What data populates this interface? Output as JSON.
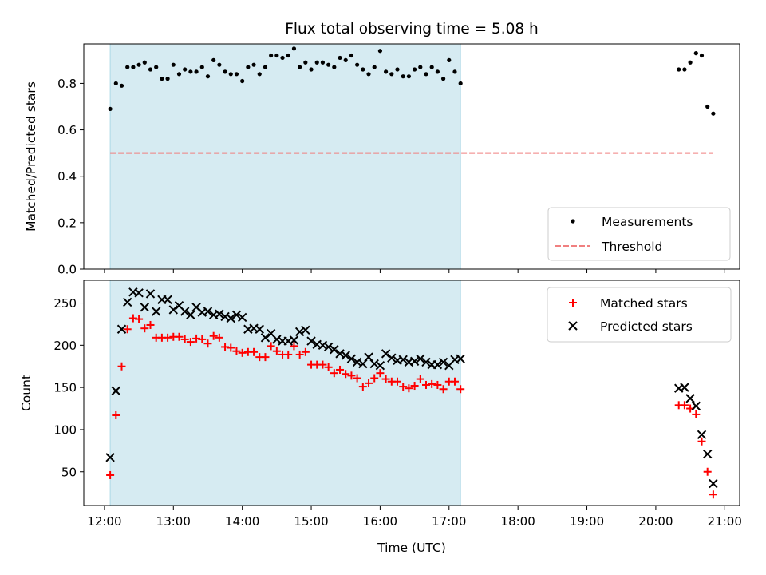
{
  "chart_data": [
    {
      "type": "scatter",
      "title": "Flux total observing time = 5.08 h",
      "xlabel": "",
      "ylabel": "Matched/Predicted stars",
      "ylim": [
        0,
        0.97
      ],
      "yticks": [
        "0.0",
        "0.2",
        "0.4",
        "0.6",
        "0.8"
      ],
      "ytick_values": [
        0,
        0.2,
        0.4,
        0.6,
        0.8
      ],
      "shaded_span": [
        "12:05",
        "17:10"
      ],
      "threshold": 0.5,
      "threshold_x": [
        "12:05",
        "20:50"
      ],
      "legend_position": "lower right",
      "series": [
        {
          "name": "Measurements",
          "marker": "dot",
          "color": "#000000",
          "points": [
            [
              "12:05",
              0.69
            ],
            [
              "12:10",
              0.8
            ],
            [
              "12:15",
              0.79
            ],
            [
              "12:20",
              0.87
            ],
            [
              "12:25",
              0.87
            ],
            [
              "12:30",
              0.88
            ],
            [
              "12:35",
              0.89
            ],
            [
              "12:40",
              0.86
            ],
            [
              "12:45",
              0.87
            ],
            [
              "12:50",
              0.82
            ],
            [
              "12:55",
              0.82
            ],
            [
              "13:00",
              0.88
            ],
            [
              "13:05",
              0.84
            ],
            [
              "13:10",
              0.86
            ],
            [
              "13:15",
              0.85
            ],
            [
              "13:20",
              0.85
            ],
            [
              "13:25",
              0.87
            ],
            [
              "13:30",
              0.83
            ],
            [
              "13:35",
              0.9
            ],
            [
              "13:40",
              0.88
            ],
            [
              "13:45",
              0.85
            ],
            [
              "13:50",
              0.84
            ],
            [
              "13:55",
              0.84
            ],
            [
              "14:00",
              0.81
            ],
            [
              "14:05",
              0.87
            ],
            [
              "14:10",
              0.88
            ],
            [
              "14:15",
              0.84
            ],
            [
              "14:20",
              0.87
            ],
            [
              "14:25",
              0.92
            ],
            [
              "14:30",
              0.92
            ],
            [
              "14:35",
              0.91
            ],
            [
              "14:40",
              0.92
            ],
            [
              "14:45",
              0.95
            ],
            [
              "14:50",
              0.87
            ],
            [
              "14:55",
              0.89
            ],
            [
              "15:00",
              0.86
            ],
            [
              "15:05",
              0.89
            ],
            [
              "15:10",
              0.89
            ],
            [
              "15:15",
              0.88
            ],
            [
              "15:20",
              0.87
            ],
            [
              "15:25",
              0.91
            ],
            [
              "15:30",
              0.9
            ],
            [
              "15:35",
              0.92
            ],
            [
              "15:40",
              0.88
            ],
            [
              "15:45",
              0.86
            ],
            [
              "15:50",
              0.84
            ],
            [
              "15:55",
              0.87
            ],
            [
              "16:00",
              0.94
            ],
            [
              "16:05",
              0.85
            ],
            [
              "16:10",
              0.84
            ],
            [
              "16:15",
              0.86
            ],
            [
              "16:20",
              0.83
            ],
            [
              "16:25",
              0.83
            ],
            [
              "16:30",
              0.86
            ],
            [
              "16:35",
              0.87
            ],
            [
              "16:40",
              0.84
            ],
            [
              "16:45",
              0.87
            ],
            [
              "16:50",
              0.85
            ],
            [
              "16:55",
              0.82
            ],
            [
              "17:00",
              0.9
            ],
            [
              "17:05",
              0.85
            ],
            [
              "17:10",
              0.8
            ],
            [
              "20:20",
              0.86
            ],
            [
              "20:25",
              0.86
            ],
            [
              "20:30",
              0.89
            ],
            [
              "20:35",
              0.93
            ],
            [
              "20:40",
              0.92
            ],
            [
              "20:45",
              0.7
            ],
            [
              "20:50",
              0.67
            ]
          ]
        },
        {
          "name": "Threshold",
          "marker": "dashed-line",
          "color": "#f08080"
        }
      ]
    },
    {
      "type": "scatter",
      "title": "",
      "xlabel": "Time (UTC)",
      "ylabel": "Count",
      "ylim": [
        10,
        277
      ],
      "yticks": [
        "50",
        "100",
        "150",
        "200",
        "250"
      ],
      "ytick_values": [
        50,
        100,
        150,
        200,
        250
      ],
      "xticks": [
        "12:00",
        "13:00",
        "14:00",
        "15:00",
        "16:00",
        "17:00",
        "18:00",
        "19:00",
        "20:00",
        "21:00"
      ],
      "xlim": [
        "11:42",
        "21:13"
      ],
      "shaded_span": [
        "12:05",
        "17:10"
      ],
      "legend_position": "upper right",
      "times": [
        "12:05",
        "12:10",
        "12:15",
        "12:20",
        "12:25",
        "12:30",
        "12:35",
        "12:40",
        "12:45",
        "12:50",
        "12:55",
        "13:00",
        "13:05",
        "13:10",
        "13:15",
        "13:20",
        "13:25",
        "13:30",
        "13:35",
        "13:40",
        "13:45",
        "13:50",
        "13:55",
        "14:00",
        "14:05",
        "14:10",
        "14:15",
        "14:20",
        "14:25",
        "14:30",
        "14:35",
        "14:40",
        "14:45",
        "14:50",
        "14:55",
        "15:00",
        "15:05",
        "15:10",
        "15:15",
        "15:20",
        "15:25",
        "15:30",
        "15:35",
        "15:40",
        "15:45",
        "15:50",
        "15:55",
        "16:00",
        "16:05",
        "16:10",
        "16:15",
        "16:20",
        "16:25",
        "16:30",
        "16:35",
        "16:40",
        "16:45",
        "16:50",
        "16:55",
        "17:00",
        "17:05",
        "17:10",
        "20:20",
        "20:25",
        "20:30",
        "20:35",
        "20:40",
        "20:45",
        "20:50"
      ],
      "series": [
        {
          "name": "Matched stars",
          "marker": "plus",
          "color": "#ff0000",
          "values": [
            46,
            117,
            175,
            219,
            232,
            231,
            220,
            224,
            209,
            209,
            209,
            210,
            210,
            207,
            204,
            208,
            207,
            202,
            211,
            209,
            198,
            197,
            193,
            191,
            192,
            192,
            186,
            186,
            199,
            193,
            189,
            189,
            199,
            189,
            192,
            177,
            177,
            177,
            174,
            167,
            171,
            166,
            164,
            161,
            151,
            155,
            161,
            167,
            160,
            157,
            157,
            151,
            149,
            152,
            160,
            153,
            154,
            153,
            148,
            157,
            157,
            148,
            129,
            129,
            125,
            118,
            86,
            50,
            23
          ]
        },
        {
          "name": "Predicted stars",
          "marker": "x",
          "color": "#000000",
          "values": [
            67,
            146,
            219,
            251,
            263,
            262,
            245,
            261,
            240,
            254,
            254,
            242,
            247,
            240,
            236,
            245,
            239,
            240,
            236,
            237,
            234,
            232,
            236,
            233,
            219,
            220,
            219,
            209,
            214,
            207,
            205,
            205,
            206,
            216,
            218,
            205,
            201,
            200,
            198,
            195,
            190,
            188,
            184,
            180,
            178,
            186,
            178,
            176,
            190,
            185,
            182,
            183,
            180,
            181,
            184,
            180,
            177,
            177,
            180,
            176,
            183,
            184,
            149,
            150,
            137,
            128,
            94,
            71,
            36
          ]
        }
      ]
    }
  ]
}
